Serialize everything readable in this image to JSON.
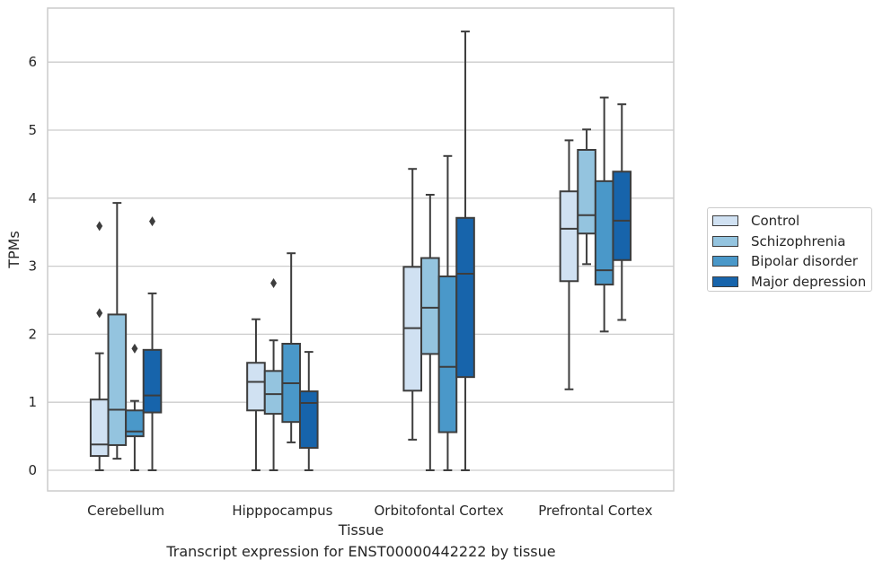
{
  "caption": "Transcript expression for ENST00000442222 by tissue",
  "chart_data": {
    "type": "box",
    "xlabel": "Tissue",
    "ylabel": "TPMs",
    "ylim": [
      -0.32,
      6.8
    ],
    "yticks": [
      0,
      1,
      2,
      3,
      4,
      5,
      6
    ],
    "grid": "horizontal",
    "legend_position": "right",
    "categories": [
      "Cerebellum",
      "Hipppocampus",
      "Orbitofontal Cortex",
      "Prefrontal Cortex"
    ],
    "series": [
      {
        "name": "Control",
        "color": "#d0e1f2",
        "boxes": [
          {
            "whisker_low": 0.0,
            "q1": 0.21,
            "median": 0.38,
            "q3": 1.04,
            "whisker_high": 1.72,
            "outliers": [
              2.31,
              3.59
            ]
          },
          {
            "whisker_low": 0.0,
            "q1": 0.88,
            "median": 1.3,
            "q3": 1.58,
            "whisker_high": 2.22,
            "outliers": []
          },
          {
            "whisker_low": 0.45,
            "q1": 1.17,
            "median": 2.09,
            "q3": 2.99,
            "whisker_high": 4.43,
            "outliers": []
          },
          {
            "whisker_low": 1.19,
            "q1": 2.78,
            "median": 3.55,
            "q3": 4.1,
            "whisker_high": 4.85,
            "outliers": []
          }
        ]
      },
      {
        "name": "Schizophrenia",
        "color": "#94c4df",
        "boxes": [
          {
            "whisker_low": 0.17,
            "q1": 0.37,
            "median": 0.89,
            "q3": 2.29,
            "whisker_high": 3.93,
            "outliers": []
          },
          {
            "whisker_low": 0.0,
            "q1": 0.83,
            "median": 1.12,
            "q3": 1.46,
            "whisker_high": 1.91,
            "outliers": [
              2.75
            ]
          },
          {
            "whisker_low": 0.0,
            "q1": 1.71,
            "median": 2.39,
            "q3": 3.12,
            "whisker_high": 4.05,
            "outliers": []
          },
          {
            "whisker_low": 3.03,
            "q1": 3.48,
            "median": 3.75,
            "q3": 4.71,
            "whisker_high": 5.01,
            "outliers": []
          }
        ]
      },
      {
        "name": "Bipolar disorder",
        "color": "#4a98c9",
        "boxes": [
          {
            "whisker_low": 0.0,
            "q1": 0.5,
            "median": 0.57,
            "q3": 0.88,
            "whisker_high": 1.02,
            "outliers": [
              1.79
            ]
          },
          {
            "whisker_low": 0.41,
            "q1": 0.71,
            "median": 1.28,
            "q3": 1.86,
            "whisker_high": 3.19,
            "outliers": []
          },
          {
            "whisker_low": 0.0,
            "q1": 0.56,
            "median": 1.52,
            "q3": 2.85,
            "whisker_high": 4.62,
            "outliers": []
          },
          {
            "whisker_low": 2.04,
            "q1": 2.73,
            "median": 2.94,
            "q3": 4.25,
            "whisker_high": 5.48,
            "outliers": []
          }
        ]
      },
      {
        "name": "Major depression",
        "color": "#1764ab",
        "boxes": [
          {
            "whisker_low": 0.0,
            "q1": 0.85,
            "median": 1.1,
            "q3": 1.77,
            "whisker_high": 2.6,
            "outliers": [
              3.66
            ]
          },
          {
            "whisker_low": 0.0,
            "q1": 0.33,
            "median": 0.99,
            "q3": 1.16,
            "whisker_high": 1.74,
            "outliers": []
          },
          {
            "whisker_low": 0.0,
            "q1": 1.37,
            "median": 2.89,
            "q3": 3.71,
            "whisker_high": 6.45,
            "outliers": []
          },
          {
            "whisker_low": 2.21,
            "q1": 3.09,
            "median": 3.67,
            "q3": 4.39,
            "whisker_high": 5.38,
            "outliers": []
          }
        ]
      }
    ]
  }
}
